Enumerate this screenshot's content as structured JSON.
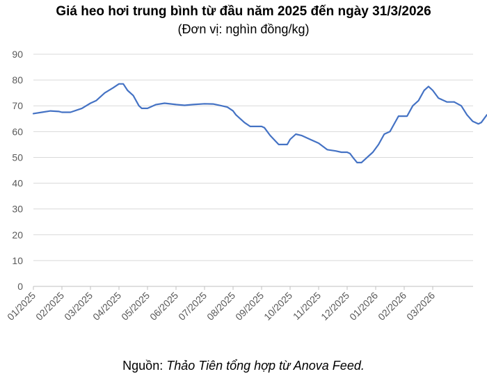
{
  "chart_data": {
    "type": "line",
    "title": "Giá heo hơi trung bình từ đầu năm 2025 đến ngày 31/3/2026",
    "subtitle": "(Đơn vị: nghìn đồng/kg)",
    "xlabel": "",
    "ylabel": "",
    "ylim": [
      0,
      90
    ],
    "yticks": [
      "0",
      "10",
      "20",
      "30",
      "40",
      "50",
      "60",
      "70",
      "80",
      "90"
    ],
    "xticks": [
      "01/2025",
      "02/2025",
      "03/2025",
      "04/2025",
      "05/2025",
      "06/2025",
      "07/2025",
      "08/2025",
      "09/2025",
      "10/2025",
      "11/2025",
      "12/2025",
      "01/2026",
      "02/2026",
      "03/2026"
    ],
    "grid": true,
    "legend": "none",
    "series_color": "#4472C4",
    "series": [
      {
        "x": [
          0,
          0.3,
          0.6,
          0.9,
          1.0,
          1.3,
          1.7,
          2.0,
          2.2,
          2.5,
          2.8,
          3.0,
          3.15,
          3.3,
          3.5,
          3.7,
          3.8,
          4.0,
          4.3,
          4.6,
          5.0,
          5.3,
          5.6,
          6.0,
          6.3,
          6.6,
          6.8,
          7.0,
          7.1,
          7.4,
          7.6,
          7.8,
          8.0,
          8.1,
          8.3,
          8.6,
          8.8,
          8.9,
          9.0,
          9.2,
          9.4,
          9.7,
          10.0,
          10.3,
          10.6,
          10.8,
          11.0,
          11.1,
          11.2,
          11.35,
          11.5,
          11.7,
          11.9,
          12.1,
          12.3,
          12.5,
          12.6,
          12.8,
          12.9,
          13.0,
          13.1,
          13.3,
          13.5,
          13.7,
          13.85,
          14.0,
          14.2,
          14.5,
          14.75
        ],
        "y": [
          67,
          67.5,
          68,
          67.8,
          67.5,
          67.5,
          69,
          71,
          72,
          75,
          77,
          78.5,
          78.5,
          76,
          74,
          70,
          69,
          69,
          70.5,
          71,
          70.5,
          70.2,
          70.5,
          70.8,
          70.7,
          70,
          69.5,
          68,
          66.5,
          63.5,
          62,
          62,
          62,
          61.5,
          58.5,
          55,
          55,
          55,
          57,
          59,
          58.5,
          57,
          55.5,
          53,
          52.5,
          52,
          52,
          51.5,
          50,
          48,
          48,
          50,
          52,
          55,
          59,
          60,
          62,
          66,
          66,
          66,
          66,
          70,
          72,
          76,
          77.5,
          76,
          73,
          71.5,
          71.5
        ]
      },
      {
        "x": [
          14.75,
          15.0,
          15.2,
          15.4,
          15.6,
          15.7,
          15.9,
          16.0,
          16.2
        ],
        "y": [
          71.5,
          70,
          66.5,
          64,
          63,
          63.5,
          66.5,
          66,
          64.5
        ]
      }
    ]
  },
  "source": {
    "prefix": "Nguồn: ",
    "text": "Thảo Tiên tổng hợp từ Anova Feed."
  }
}
